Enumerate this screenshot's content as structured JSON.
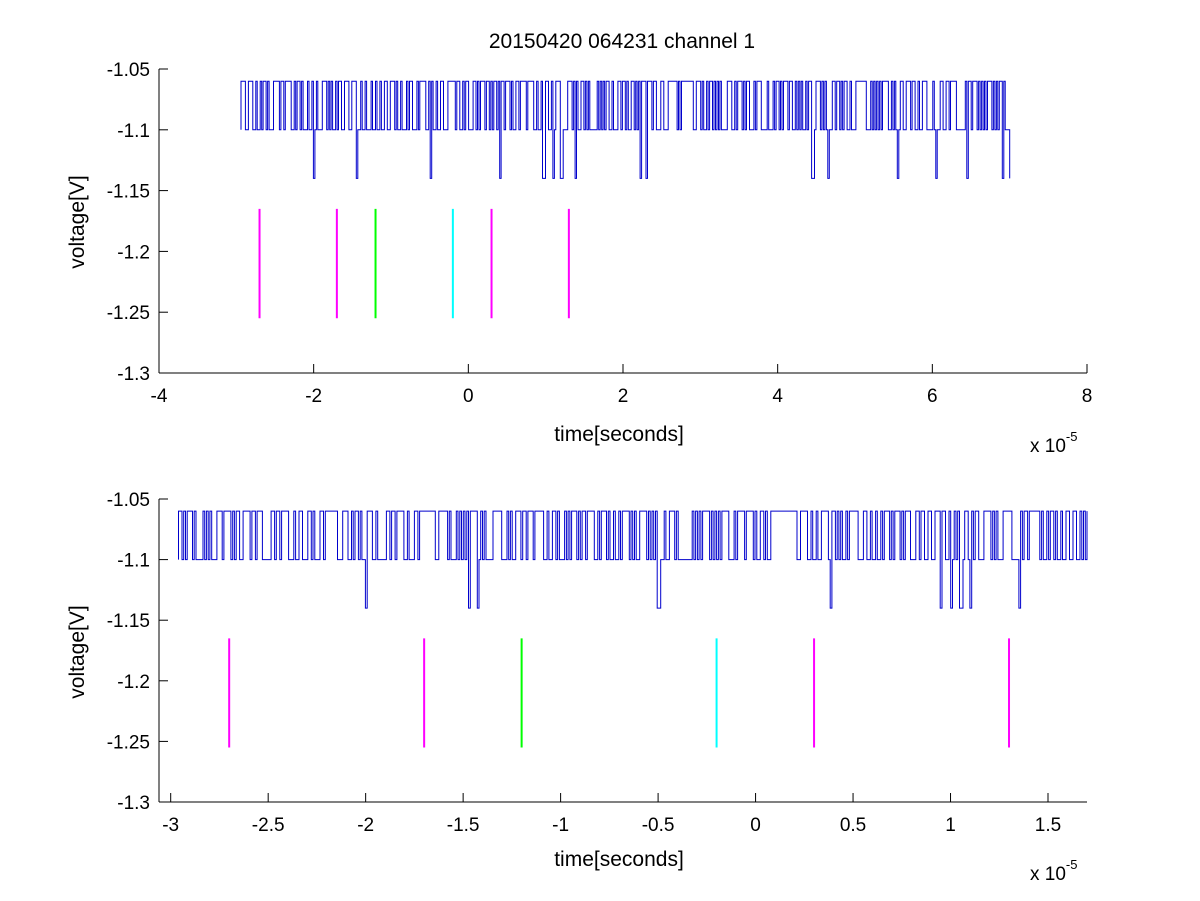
{
  "chart_data": [
    {
      "type": "line",
      "title": "20150420 064231 channel 1",
      "xlabel": "time[seconds]",
      "ylabel": "voltage[V]",
      "x_multiplier_label": {
        "base": "x 10",
        "exponent": "-5"
      },
      "xlim": [
        -4,
        8
      ],
      "ylim": [
        -1.3,
        -1.05
      ],
      "xticks": [
        -4,
        -2,
        0,
        2,
        4,
        6,
        8
      ],
      "xtick_labels": [
        "-4",
        "-2",
        "0",
        "2",
        "4",
        "6",
        "8"
      ],
      "yticks": [
        -1.05,
        -1.1,
        -1.15,
        -1.2,
        -1.25,
        -1.3
      ],
      "ytick_labels": [
        "-1.05",
        "-1.1",
        "-1.15",
        "-1.2",
        "-1.25",
        "-1.3"
      ],
      "grid": false,
      "series": [
        {
          "color": "#0000cc",
          "x_range": [
            -2.94,
            7.0
          ],
          "levels": [
            -1.06,
            -1.1,
            -1.14
          ],
          "dips_to_-1.14_at": [
            -2.0,
            -1.45,
            -0.5,
            0.4,
            0.97,
            1.1,
            1.2,
            1.38,
            2.22,
            2.3,
            4.45,
            4.65,
            5.55,
            6.05,
            6.45,
            6.9,
            7.0
          ]
        }
      ],
      "markers": [
        {
          "x": -2.7,
          "y_range": [
            -1.255,
            -1.165
          ],
          "color": "#ff00ff"
        },
        {
          "x": -1.7,
          "y_range": [
            -1.255,
            -1.165
          ],
          "color": "#ff00ff"
        },
        {
          "x": -1.2,
          "y_range": [
            -1.255,
            -1.165
          ],
          "color": "#00ff00"
        },
        {
          "x": -0.2,
          "y_range": [
            -1.255,
            -1.165
          ],
          "color": "#00ffff"
        },
        {
          "x": 0.3,
          "y_range": [
            -1.255,
            -1.165
          ],
          "color": "#ff00ff"
        },
        {
          "x": 1.3,
          "y_range": [
            -1.255,
            -1.165
          ],
          "color": "#ff00ff"
        }
      ]
    },
    {
      "type": "line",
      "xlabel": "time[seconds]",
      "ylabel": "voltage[V]",
      "x_multiplier_label": {
        "base": "x 10",
        "exponent": "-5"
      },
      "xlim": [
        -3.06,
        1.7
      ],
      "ylim": [
        -1.3,
        -1.05
      ],
      "xticks": [
        -3,
        -2.5,
        -2,
        -1.5,
        -1,
        -0.5,
        0,
        0.5,
        1,
        1.5
      ],
      "xtick_labels": [
        "-3",
        "-2.5",
        "-2",
        "-1.5",
        "-1",
        "-0.5",
        "0",
        "0.5",
        "1",
        "1.5"
      ],
      "yticks": [
        -1.05,
        -1.1,
        -1.15,
        -1.2,
        -1.25,
        -1.3
      ],
      "ytick_labels": [
        "-1.05",
        "-1.1",
        "-1.15",
        "-1.2",
        "-1.25",
        "-1.3"
      ],
      "grid": false,
      "series": [
        {
          "color": "#0000cc",
          "x_range": [
            -2.96,
            1.7
          ],
          "levels": [
            -1.06,
            -1.1,
            -1.14
          ],
          "dips_to_-1.14_at": [
            -2.0,
            -1.47,
            -1.43,
            -0.5,
            0.38,
            0.95,
            1.0,
            1.05,
            1.1,
            1.35
          ]
        }
      ],
      "markers": [
        {
          "x": -2.7,
          "y_range": [
            -1.255,
            -1.165
          ],
          "color": "#ff00ff"
        },
        {
          "x": -1.7,
          "y_range": [
            -1.255,
            -1.165
          ],
          "color": "#ff00ff"
        },
        {
          "x": -1.2,
          "y_range": [
            -1.255,
            -1.165
          ],
          "color": "#00ff00"
        },
        {
          "x": -0.2,
          "y_range": [
            -1.255,
            -1.165
          ],
          "color": "#00ffff"
        },
        {
          "x": 0.3,
          "y_range": [
            -1.255,
            -1.165
          ],
          "color": "#ff00ff"
        },
        {
          "x": 1.3,
          "y_range": [
            -1.255,
            -1.165
          ],
          "color": "#ff00ff"
        }
      ]
    }
  ]
}
